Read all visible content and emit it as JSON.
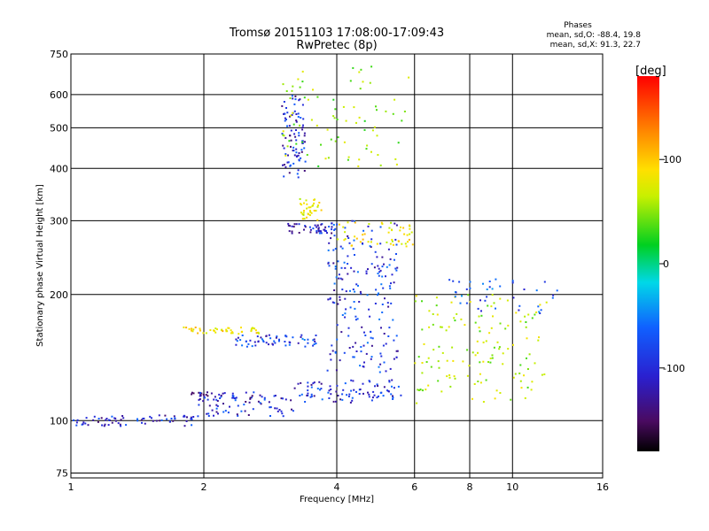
{
  "header": {
    "title_line1": "Tromsø 20151103 17:08:00-17:09:43",
    "title_line2": "RwPretec (8p)",
    "phases_heading": "Phases",
    "phases_o": "mean, sd,O: -88.4, 19.8",
    "phases_x": "mean, sd,X:  91.3, 22.7"
  },
  "colorbar": {
    "unit_label": "[deg]",
    "ticks": [
      {
        "label": "100",
        "value": 100
      },
      {
        "label": "0",
        "value": 0
      },
      {
        "label": "-100",
        "value": -100
      }
    ],
    "range": [
      -180,
      180
    ]
  },
  "chart_data": {
    "type": "scatter",
    "title": "Tromsø 20151103 17:08:00-17:09:43",
    "subtitle": "RwPretec (8p)",
    "xlabel": "Frequency [MHz]",
    "ylabel": "Stationary phase Virtual Height [km]",
    "x_scale": "log",
    "y_scale": "log",
    "xlim": [
      1,
      16
    ],
    "ylim": [
      73,
      750
    ],
    "grid": true,
    "x_ticks": [
      {
        "label": "1",
        "value": 1
      },
      {
        "label": "2",
        "value": 2
      },
      {
        "label": "4",
        "value": 4
      },
      {
        "label": "6",
        "value": 6
      },
      {
        "label": "8",
        "value": 8
      },
      {
        "label": "10",
        "value": 10
      },
      {
        "label": "16",
        "value": 16
      }
    ],
    "y_ticks": [
      {
        "label": "75",
        "value": 75
      },
      {
        "label": "100",
        "value": 100
      },
      {
        "label": "200",
        "value": 200
      },
      {
        "label": "300",
        "value": 300
      },
      {
        "label": "400",
        "value": 400
      },
      {
        "label": "500",
        "value": 500
      },
      {
        "label": "600",
        "value": 600
      },
      {
        "label": "750",
        "value": 750
      }
    ],
    "color_scale": {
      "name": "phase [deg]",
      "min": -180,
      "max": 180
    },
    "clusters": [
      {
        "x_range": [
          1.0,
          1.9
        ],
        "y_range": [
          97,
          103
        ],
        "phase": -110,
        "count": 70
      },
      {
        "x_range": [
          1.9,
          3.2
        ],
        "y_range": [
          102,
          115
        ],
        "phase": -110,
        "count": 70
      },
      {
        "x_range": [
          3.2,
          5.6
        ],
        "y_range": [
          110,
          125
        ],
        "phase": -105,
        "count": 90
      },
      {
        "x_range": [
          1.8,
          2.6
        ],
        "y_range": [
          113,
          117
        ],
        "phase": -120,
        "count": 30
      },
      {
        "x_range": [
          1.8,
          2.7
        ],
        "y_range": [
          161,
          167
        ],
        "phase": 95,
        "count": 45
      },
      {
        "x_range": [
          2.3,
          3.6
        ],
        "y_range": [
          150,
          160
        ],
        "phase": -95,
        "count": 60
      },
      {
        "x_range": [
          3.0,
          3.4
        ],
        "y_range": [
          380,
          600
        ],
        "phase": -110,
        "count": 90
      },
      {
        "x_range": [
          3.3,
          3.7
        ],
        "y_range": [
          300,
          340
        ],
        "phase": 80,
        "count": 35
      },
      {
        "x_range": [
          3.1,
          3.9
        ],
        "y_range": [
          280,
          295
        ],
        "phase": -110,
        "count": 45
      },
      {
        "x_range": [
          3.8,
          5.5
        ],
        "y_range": [
          130,
          300
        ],
        "phase": -100,
        "count": 200
      },
      {
        "x_range": [
          4.0,
          6.0
        ],
        "y_range": [
          260,
          300
        ],
        "phase": 85,
        "count": 50
      },
      {
        "x_range": [
          6.0,
          12.0
        ],
        "y_range": [
          110,
          200
        ],
        "phase": 60,
        "count": 140
      },
      {
        "x_range": [
          3.0,
          6.0
        ],
        "y_range": [
          400,
          700
        ],
        "phase": 50,
        "count": 80
      },
      {
        "x_range": [
          7.0,
          13.0
        ],
        "y_range": [
          180,
          220
        ],
        "phase": -80,
        "count": 40
      }
    ]
  }
}
